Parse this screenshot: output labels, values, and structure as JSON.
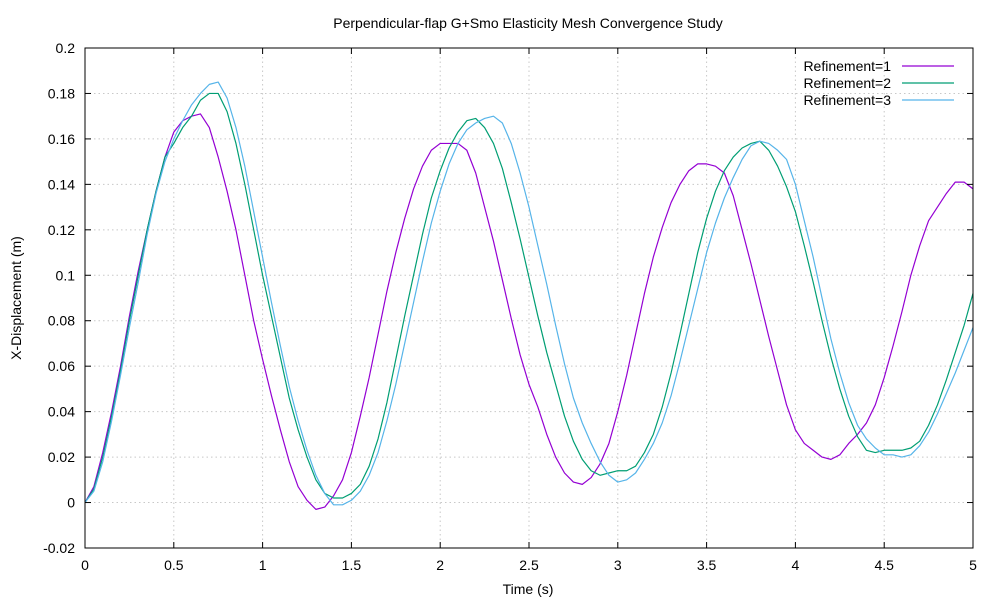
{
  "chart_data": {
    "type": "line",
    "title": "Perpendicular-flap G+Smo Elasticity Mesh Convergence Study",
    "xlabel": "Time (s)",
    "ylabel": "X-Displacement (m)",
    "xlim": [
      0,
      5
    ],
    "ylim": [
      -0.02,
      0.2
    ],
    "xticks": [
      0,
      0.5,
      1,
      1.5,
      2,
      2.5,
      3,
      3.5,
      4,
      4.5,
      5
    ],
    "xtick_labels": [
      "0",
      "0.5",
      "1",
      "1.5",
      "2",
      "2.5",
      "3",
      "3.5",
      "4",
      "4.5",
      "5"
    ],
    "yticks": [
      -0.02,
      0,
      0.02,
      0.04,
      0.06,
      0.08,
      0.1,
      0.12,
      0.14,
      0.16,
      0.18,
      0.2
    ],
    "ytick_labels": [
      "-0.02",
      "0",
      "0.02",
      "0.04",
      "0.06",
      "0.08",
      "0.1",
      "0.12",
      "0.14",
      "0.16",
      "0.18",
      "0.2"
    ],
    "grid": true,
    "legend_position": "top-right",
    "series": [
      {
        "name": "Refinement=1",
        "color": "#9400d3",
        "x": [
          0,
          0.05,
          0.1,
          0.15,
          0.2,
          0.25,
          0.3,
          0.35,
          0.4,
          0.45,
          0.5,
          0.55,
          0.6,
          0.65,
          0.7,
          0.75,
          0.8,
          0.85,
          0.9,
          0.95,
          1.0,
          1.05,
          1.1,
          1.15,
          1.2,
          1.25,
          1.3,
          1.35,
          1.4,
          1.45,
          1.5,
          1.55,
          1.6,
          1.65,
          1.7,
          1.75,
          1.8,
          1.85,
          1.9,
          1.95,
          2.0,
          2.05,
          2.1,
          2.15,
          2.2,
          2.25,
          2.3,
          2.35,
          2.4,
          2.45,
          2.5,
          2.55,
          2.6,
          2.65,
          2.7,
          2.75,
          2.8,
          2.85,
          2.9,
          2.95,
          3.0,
          3.05,
          3.1,
          3.15,
          3.2,
          3.25,
          3.3,
          3.35,
          3.4,
          3.45,
          3.5,
          3.55,
          3.6,
          3.65,
          3.7,
          3.75,
          3.8,
          3.85,
          3.9,
          3.95,
          4.0,
          4.05,
          4.1,
          4.15,
          4.2,
          4.25,
          4.3,
          4.35,
          4.4,
          4.45,
          4.5,
          4.55,
          4.6,
          4.65,
          4.7,
          4.75,
          4.8,
          4.85,
          4.9,
          4.95,
          5.0
        ],
        "y": [
          0,
          0.007,
          0.022,
          0.04,
          0.06,
          0.082,
          0.102,
          0.12,
          0.137,
          0.152,
          0.163,
          0.168,
          0.17,
          0.171,
          0.165,
          0.152,
          0.137,
          0.12,
          0.1,
          0.08,
          0.063,
          0.047,
          0.032,
          0.018,
          0.007,
          0.001,
          -0.003,
          -0.002,
          0.003,
          0.01,
          0.022,
          0.038,
          0.055,
          0.074,
          0.093,
          0.11,
          0.125,
          0.138,
          0.148,
          0.155,
          0.158,
          0.158,
          0.158,
          0.155,
          0.145,
          0.13,
          0.115,
          0.098,
          0.081,
          0.065,
          0.052,
          0.042,
          0.03,
          0.02,
          0.013,
          0.009,
          0.008,
          0.011,
          0.017,
          0.026,
          0.04,
          0.056,
          0.074,
          0.092,
          0.108,
          0.121,
          0.132,
          0.14,
          0.146,
          0.149,
          0.149,
          0.148,
          0.145,
          0.135,
          0.12,
          0.105,
          0.089,
          0.073,
          0.058,
          0.043,
          0.032,
          0.026,
          0.023,
          0.02,
          0.019,
          0.021,
          0.026,
          0.03,
          0.035,
          0.043,
          0.055,
          0.069,
          0.084,
          0.1,
          0.113,
          0.124,
          0.13,
          0.136,
          0.141,
          0.141,
          0.138
        ]
      },
      {
        "name": "Refinement=2",
        "color": "#009e73",
        "x": [
          0,
          0.05,
          0.1,
          0.15,
          0.2,
          0.25,
          0.3,
          0.35,
          0.4,
          0.45,
          0.5,
          0.55,
          0.6,
          0.65,
          0.7,
          0.75,
          0.8,
          0.85,
          0.9,
          0.95,
          1.0,
          1.05,
          1.1,
          1.15,
          1.2,
          1.25,
          1.3,
          1.35,
          1.4,
          1.45,
          1.5,
          1.55,
          1.6,
          1.65,
          1.7,
          1.75,
          1.8,
          1.85,
          1.9,
          1.95,
          2.0,
          2.05,
          2.1,
          2.15,
          2.2,
          2.25,
          2.3,
          2.35,
          2.4,
          2.45,
          2.5,
          2.55,
          2.6,
          2.65,
          2.7,
          2.75,
          2.8,
          2.85,
          2.9,
          2.95,
          3.0,
          3.05,
          3.1,
          3.15,
          3.2,
          3.25,
          3.3,
          3.35,
          3.4,
          3.45,
          3.5,
          3.55,
          3.6,
          3.65,
          3.7,
          3.75,
          3.8,
          3.85,
          3.9,
          3.95,
          4.0,
          4.05,
          4.1,
          4.15,
          4.2,
          4.25,
          4.3,
          4.35,
          4.4,
          4.45,
          4.5,
          4.55,
          4.6,
          4.65,
          4.7,
          4.75,
          4.8,
          4.85,
          4.9,
          4.95,
          5.0
        ],
        "y": [
          0,
          0.006,
          0.02,
          0.038,
          0.058,
          0.08,
          0.1,
          0.12,
          0.137,
          0.152,
          0.158,
          0.165,
          0.17,
          0.177,
          0.18,
          0.18,
          0.172,
          0.158,
          0.14,
          0.12,
          0.1,
          0.082,
          0.064,
          0.046,
          0.032,
          0.02,
          0.01,
          0.004,
          0.002,
          0.002,
          0.004,
          0.008,
          0.016,
          0.028,
          0.044,
          0.063,
          0.082,
          0.1,
          0.118,
          0.134,
          0.146,
          0.156,
          0.163,
          0.168,
          0.169,
          0.165,
          0.158,
          0.147,
          0.132,
          0.116,
          0.099,
          0.082,
          0.066,
          0.052,
          0.038,
          0.027,
          0.019,
          0.014,
          0.012,
          0.013,
          0.014,
          0.014,
          0.016,
          0.022,
          0.03,
          0.042,
          0.057,
          0.074,
          0.092,
          0.11,
          0.125,
          0.137,
          0.146,
          0.152,
          0.156,
          0.158,
          0.159,
          0.155,
          0.148,
          0.139,
          0.128,
          0.113,
          0.097,
          0.08,
          0.064,
          0.05,
          0.038,
          0.029,
          0.023,
          0.022,
          0.023,
          0.023,
          0.023,
          0.024,
          0.027,
          0.034,
          0.043,
          0.054,
          0.066,
          0.078,
          0.092
        ]
      },
      {
        "name": "Refinement=3",
        "color": "#56b4e9",
        "x": [
          0,
          0.05,
          0.1,
          0.15,
          0.2,
          0.25,
          0.3,
          0.35,
          0.4,
          0.45,
          0.5,
          0.55,
          0.6,
          0.65,
          0.7,
          0.75,
          0.8,
          0.85,
          0.9,
          0.95,
          1.0,
          1.05,
          1.1,
          1.15,
          1.2,
          1.25,
          1.3,
          1.35,
          1.4,
          1.45,
          1.5,
          1.55,
          1.6,
          1.65,
          1.7,
          1.75,
          1.8,
          1.85,
          1.9,
          1.95,
          2.0,
          2.05,
          2.1,
          2.15,
          2.2,
          2.25,
          2.3,
          2.35,
          2.4,
          2.45,
          2.5,
          2.55,
          2.6,
          2.65,
          2.7,
          2.75,
          2.8,
          2.85,
          2.9,
          2.95,
          3.0,
          3.05,
          3.1,
          3.15,
          3.2,
          3.25,
          3.3,
          3.35,
          3.4,
          3.45,
          3.5,
          3.55,
          3.6,
          3.65,
          3.7,
          3.75,
          3.8,
          3.85,
          3.9,
          3.95,
          4.0,
          4.05,
          4.1,
          4.15,
          4.2,
          4.25,
          4.3,
          4.35,
          4.4,
          4.45,
          4.5,
          4.55,
          4.6,
          4.65,
          4.7,
          4.75,
          4.8,
          4.85,
          4.9,
          4.95,
          5.0
        ],
        "y": [
          0,
          0.005,
          0.018,
          0.036,
          0.056,
          0.077,
          0.097,
          0.118,
          0.136,
          0.15,
          0.16,
          0.168,
          0.175,
          0.18,
          0.184,
          0.185,
          0.178,
          0.165,
          0.148,
          0.128,
          0.108,
          0.088,
          0.069,
          0.051,
          0.036,
          0.023,
          0.012,
          0.004,
          -0.001,
          -0.001,
          0.001,
          0.005,
          0.012,
          0.022,
          0.036,
          0.052,
          0.07,
          0.088,
          0.106,
          0.123,
          0.137,
          0.149,
          0.158,
          0.164,
          0.167,
          0.169,
          0.17,
          0.167,
          0.158,
          0.145,
          0.13,
          0.113,
          0.096,
          0.078,
          0.061,
          0.046,
          0.035,
          0.026,
          0.018,
          0.012,
          0.009,
          0.01,
          0.013,
          0.019,
          0.026,
          0.035,
          0.047,
          0.062,
          0.078,
          0.094,
          0.11,
          0.123,
          0.134,
          0.143,
          0.151,
          0.157,
          0.159,
          0.158,
          0.155,
          0.151,
          0.14,
          0.124,
          0.108,
          0.09,
          0.072,
          0.057,
          0.044,
          0.034,
          0.028,
          0.024,
          0.021,
          0.021,
          0.02,
          0.021,
          0.025,
          0.031,
          0.039,
          0.048,
          0.057,
          0.067,
          0.077
        ]
      }
    ]
  }
}
